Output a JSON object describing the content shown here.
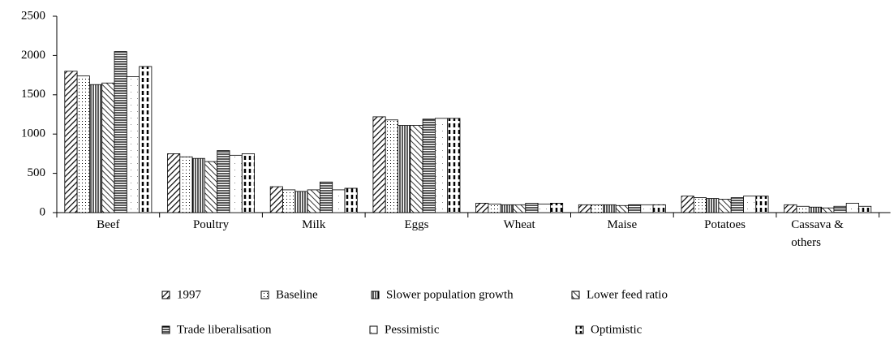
{
  "chart_data": {
    "type": "bar",
    "categories": [
      "Beef",
      "Poultry",
      "Milk",
      "Eggs",
      "Wheat",
      "Maise",
      "Potatoes",
      "Cassava & others"
    ],
    "series": [
      {
        "name": "1997",
        "color": "#000000",
        "values": [
          1800,
          750,
          330,
          1220,
          120,
          100,
          210,
          100
        ]
      },
      {
        "name": "Baseline",
        "color": "#000000",
        "values": [
          1740,
          710,
          290,
          1180,
          110,
          100,
          190,
          80
        ]
      },
      {
        "name": "Slower population growth",
        "color": "#000000",
        "values": [
          1630,
          690,
          270,
          1110,
          100,
          100,
          180,
          70
        ]
      },
      {
        "name": "Lower feed ratio",
        "color": "#000000",
        "values": [
          1650,
          650,
          290,
          1110,
          100,
          90,
          170,
          60
        ]
      },
      {
        "name": "Trade liberalisation",
        "color": "#000000",
        "values": [
          2050,
          790,
          390,
          1190,
          120,
          100,
          190,
          80
        ]
      },
      {
        "name": "Pessimistic",
        "color": "#000000",
        "values": [
          1730,
          730,
          290,
          1200,
          110,
          100,
          210,
          120
        ]
      },
      {
        "name": "Optimistic",
        "color": "#000000",
        "values": [
          1860,
          750,
          310,
          1200,
          120,
          100,
          210,
          80
        ]
      }
    ],
    "ylim": [
      0,
      2500
    ],
    "yticks": [
      0,
      500,
      1000,
      1500,
      2000,
      2500
    ],
    "grid": false,
    "legend": "bottom"
  }
}
